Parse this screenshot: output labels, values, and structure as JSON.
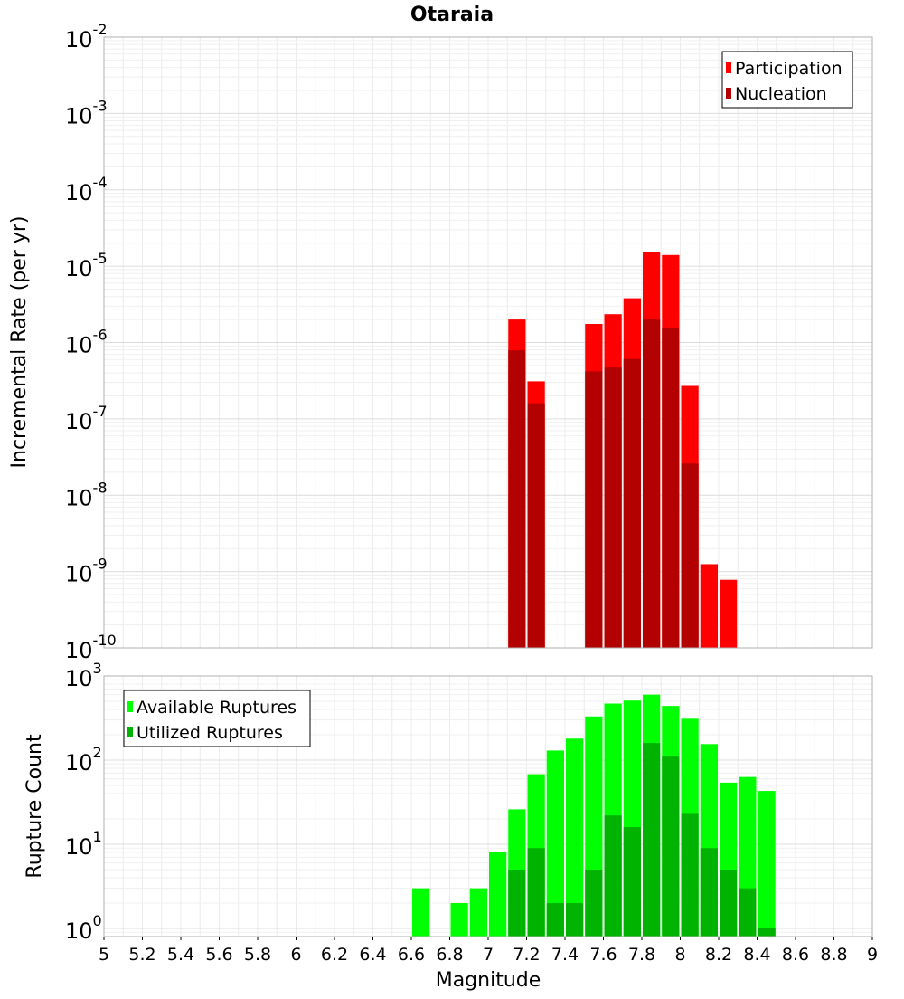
{
  "chart_data": {
    "type": "bar",
    "title": "Otaraia",
    "xlabel": "Magnitude",
    "xlim": [
      5,
      9
    ],
    "x_ticks": [
      "5",
      "5.2",
      "5.4",
      "5.6",
      "5.8",
      "6",
      "6.2",
      "6.4",
      "6.6",
      "6.8",
      "7",
      "7.2",
      "7.4",
      "7.6",
      "7.8",
      "8",
      "8.2",
      "8.4",
      "8.6",
      "8.8",
      "9"
    ],
    "x_tick_values": [
      5,
      5.2,
      5.4,
      5.6,
      5.8,
      6,
      6.2,
      6.4,
      6.6,
      6.8,
      7,
      7.2,
      7.4,
      7.6,
      7.8,
      8,
      8.2,
      8.4,
      8.6,
      8.8,
      9
    ],
    "bin_width": 0.1,
    "grid": true,
    "panels": [
      {
        "ylabel": "Incremental Rate (per yr)",
        "yscale": "log",
        "ylim": [
          1e-10,
          0.01
        ],
        "y_tick_exponents": [
          -10,
          -9,
          -8,
          -7,
          -6,
          -5,
          -4,
          -3,
          -2
        ],
        "legend": {
          "position": "top-right"
        },
        "series": [
          {
            "name": "Participation",
            "color": "#ff0000",
            "points": [
              {
                "x": 7.15,
                "y": 2e-06
              },
              {
                "x": 7.25,
                "y": 3.1e-07
              },
              {
                "x": 7.55,
                "y": 1.75e-06
              },
              {
                "x": 7.65,
                "y": 2.35e-06
              },
              {
                "x": 7.75,
                "y": 3.8e-06
              },
              {
                "x": 7.85,
                "y": 1.55e-05
              },
              {
                "x": 7.95,
                "y": 1.4e-05
              },
              {
                "x": 8.05,
                "y": 2.7e-07
              },
              {
                "x": 8.15,
                "y": 1.25e-09
              },
              {
                "x": 8.25,
                "y": 7.8e-10
              }
            ]
          },
          {
            "name": "Nucleation",
            "color": "#b30000",
            "points": [
              {
                "x": 7.15,
                "y": 7.9e-07
              },
              {
                "x": 7.25,
                "y": 1.6e-07
              },
              {
                "x": 7.55,
                "y": 4.2e-07
              },
              {
                "x": 7.65,
                "y": 4.7e-07
              },
              {
                "x": 7.75,
                "y": 6.1e-07
              },
              {
                "x": 7.85,
                "y": 2e-06
              },
              {
                "x": 7.95,
                "y": 1.55e-06
              },
              {
                "x": 8.05,
                "y": 2.6e-08
              }
            ]
          }
        ]
      },
      {
        "ylabel": "Rupture Count",
        "yscale": "log",
        "ylim": [
          0.8,
          1000
        ],
        "y_tick_exponents": [
          0,
          1,
          2,
          3
        ],
        "legend": {
          "position": "top-left"
        },
        "series": [
          {
            "name": "Available Ruptures",
            "color": "#00ff00",
            "points": [
              {
                "x": 6.65,
                "y": 3
              },
              {
                "x": 6.85,
                "y": 2
              },
              {
                "x": 6.95,
                "y": 3
              },
              {
                "x": 7.05,
                "y": 8
              },
              {
                "x": 7.15,
                "y": 26
              },
              {
                "x": 7.25,
                "y": 68
              },
              {
                "x": 7.35,
                "y": 130
              },
              {
                "x": 7.45,
                "y": 180
              },
              {
                "x": 7.55,
                "y": 330
              },
              {
                "x": 7.65,
                "y": 470
              },
              {
                "x": 7.75,
                "y": 510
              },
              {
                "x": 7.85,
                "y": 600
              },
              {
                "x": 7.95,
                "y": 440
              },
              {
                "x": 8.05,
                "y": 310
              },
              {
                "x": 8.15,
                "y": 155
              },
              {
                "x": 8.25,
                "y": 54
              },
              {
                "x": 8.35,
                "y": 63
              },
              {
                "x": 8.45,
                "y": 43
              }
            ]
          },
          {
            "name": "Utilized Ruptures",
            "color": "#00b300",
            "points": [
              {
                "x": 7.15,
                "y": 5
              },
              {
                "x": 7.25,
                "y": 9
              },
              {
                "x": 7.35,
                "y": 2
              },
              {
                "x": 7.45,
                "y": 2
              },
              {
                "x": 7.55,
                "y": 5
              },
              {
                "x": 7.65,
                "y": 22
              },
              {
                "x": 7.75,
                "y": 16
              },
              {
                "x": 7.85,
                "y": 160
              },
              {
                "x": 7.95,
                "y": 110
              },
              {
                "x": 8.05,
                "y": 23
              },
              {
                "x": 8.15,
                "y": 9
              },
              {
                "x": 8.25,
                "y": 5
              },
              {
                "x": 8.35,
                "y": 3
              },
              {
                "x": 8.45,
                "y": 1
              }
            ]
          }
        ]
      }
    ]
  }
}
